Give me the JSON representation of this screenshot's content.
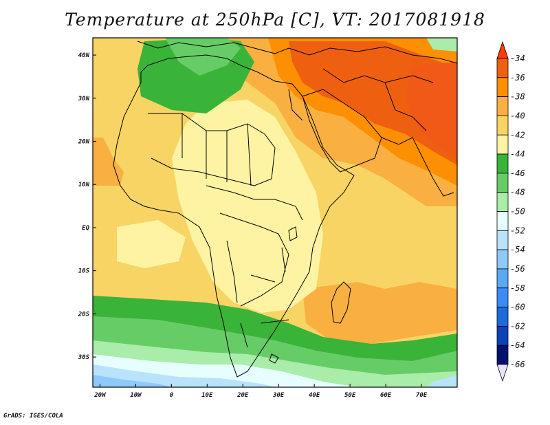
{
  "title": "Temperature at 250hPa [C], VT: 2017081918",
  "footer": "GrADS: IGES/COLA",
  "map": {
    "lon_labels": [
      "20W",
      "10W",
      "0",
      "10E",
      "20E",
      "30E",
      "40E",
      "50E",
      "60E",
      "70E"
    ],
    "lat_labels": [
      "40N",
      "30N",
      "20N",
      "10N",
      "EQ",
      "10S",
      "20S",
      "30S"
    ],
    "extent": {
      "lon_min": -22,
      "lon_max": 80,
      "lat_min": -37,
      "lat_max": 44
    }
  },
  "colorbar": {
    "levels": [
      "-34",
      "-36",
      "-38",
      "-40",
      "-42",
      "-44",
      "-46",
      "-48",
      "-50",
      "-52",
      "-54",
      "-56",
      "-58",
      "-60",
      "-62",
      "-64",
      "-66"
    ],
    "colors": [
      "#fd3d00",
      "#ee6010",
      "#fd8f02",
      "#f9b041",
      "#f8d465",
      "#fef3a3",
      "#3ab339",
      "#66cd66",
      "#aaecaa",
      "#e6fefe",
      "#b9e3fc",
      "#8ec9f9",
      "#5aaaf2",
      "#3b8df5",
      "#1e6ad8",
      "#0b42b8",
      "#04106e",
      "#e8e5fa"
    ]
  }
}
